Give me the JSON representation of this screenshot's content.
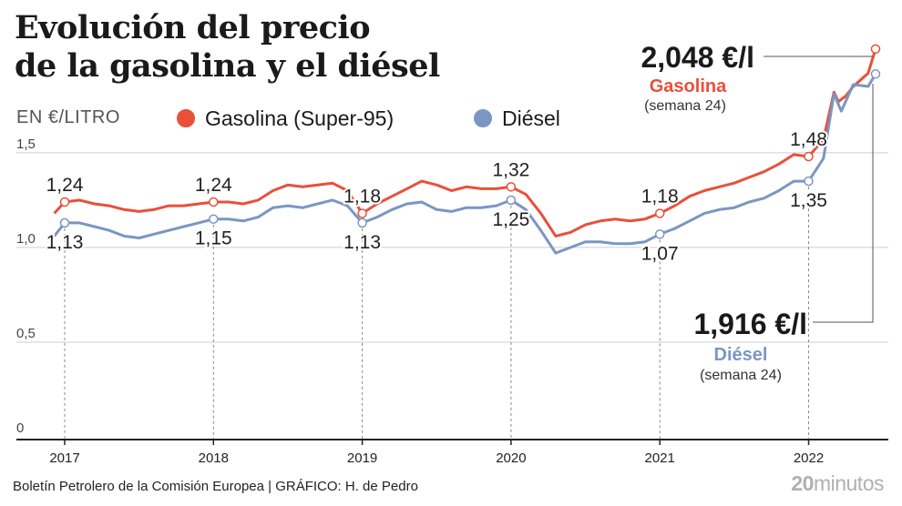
{
  "title_line1": "Evolución del precio",
  "title_line2": "de la gasolina y el diésel",
  "units": "EN €/LITRO",
  "legend": [
    {
      "label": "Gasolina (Super-95)",
      "color": "#e8503a"
    },
    {
      "label": "Diésel",
      "color": "#7b96c2"
    }
  ],
  "footer": "Boletín Petrolero de la Comisión Europea  |  GRÁFICO: H. de Pedro",
  "logo_bold": "20",
  "logo_thin": "minutos",
  "callouts": {
    "gasolina": {
      "value": "2,048 €/l",
      "name": "Gasolina",
      "week": "(semana 24)"
    },
    "diesel": {
      "value": "1,916 €/l",
      "name": "Diésel",
      "week": "(semana 24)"
    }
  },
  "chart_data": {
    "type": "line",
    "ylim": [
      0,
      2.1
    ],
    "yticks": [
      0,
      0.5,
      1.0,
      1.5
    ],
    "ytick_labels": [
      "0",
      "0,5",
      "1,0",
      "1,5"
    ],
    "xticks": [
      2017,
      2018,
      2019,
      2020,
      2021,
      2022
    ],
    "xlim": [
      2016.93,
      2022.5
    ],
    "grid": "horizontal",
    "series": [
      {
        "name": "Gasolina (Super-95)",
        "color": "#e8503a",
        "points": [
          [
            2016.93,
            1.18
          ],
          [
            2017.0,
            1.24
          ],
          [
            2017.1,
            1.25
          ],
          [
            2017.2,
            1.23
          ],
          [
            2017.3,
            1.22
          ],
          [
            2017.4,
            1.2
          ],
          [
            2017.5,
            1.19
          ],
          [
            2017.6,
            1.2
          ],
          [
            2017.7,
            1.22
          ],
          [
            2017.8,
            1.22
          ],
          [
            2017.9,
            1.23
          ],
          [
            2018.0,
            1.24
          ],
          [
            2018.1,
            1.24
          ],
          [
            2018.2,
            1.23
          ],
          [
            2018.3,
            1.25
          ],
          [
            2018.4,
            1.3
          ],
          [
            2018.5,
            1.33
          ],
          [
            2018.6,
            1.32
          ],
          [
            2018.7,
            1.33
          ],
          [
            2018.8,
            1.34
          ],
          [
            2018.9,
            1.3
          ],
          [
            2019.0,
            1.18
          ],
          [
            2019.1,
            1.23
          ],
          [
            2019.2,
            1.27
          ],
          [
            2019.3,
            1.31
          ],
          [
            2019.4,
            1.35
          ],
          [
            2019.5,
            1.33
          ],
          [
            2019.6,
            1.3
          ],
          [
            2019.7,
            1.32
          ],
          [
            2019.8,
            1.31
          ],
          [
            2019.9,
            1.31
          ],
          [
            2020.0,
            1.32
          ],
          [
            2020.1,
            1.28
          ],
          [
            2020.2,
            1.18
          ],
          [
            2020.3,
            1.06
          ],
          [
            2020.4,
            1.08
          ],
          [
            2020.5,
            1.12
          ],
          [
            2020.6,
            1.14
          ],
          [
            2020.7,
            1.15
          ],
          [
            2020.8,
            1.14
          ],
          [
            2020.9,
            1.15
          ],
          [
            2021.0,
            1.18
          ],
          [
            2021.1,
            1.22
          ],
          [
            2021.2,
            1.27
          ],
          [
            2021.3,
            1.3
          ],
          [
            2021.4,
            1.32
          ],
          [
            2021.5,
            1.34
          ],
          [
            2021.6,
            1.37
          ],
          [
            2021.7,
            1.4
          ],
          [
            2021.8,
            1.44
          ],
          [
            2021.9,
            1.49
          ],
          [
            2022.0,
            1.48
          ],
          [
            2022.1,
            1.57
          ],
          [
            2022.17,
            1.82
          ],
          [
            2022.2,
            1.77
          ],
          [
            2022.25,
            1.8
          ],
          [
            2022.3,
            1.85
          ],
          [
            2022.4,
            1.92
          ],
          [
            2022.45,
            2.048
          ]
        ]
      },
      {
        "name": "Diésel",
        "color": "#7b96c2",
        "points": [
          [
            2016.93,
            1.06
          ],
          [
            2017.0,
            1.13
          ],
          [
            2017.1,
            1.13
          ],
          [
            2017.2,
            1.11
          ],
          [
            2017.3,
            1.09
          ],
          [
            2017.4,
            1.06
          ],
          [
            2017.5,
            1.05
          ],
          [
            2017.6,
            1.07
          ],
          [
            2017.7,
            1.09
          ],
          [
            2017.8,
            1.11
          ],
          [
            2017.9,
            1.13
          ],
          [
            2018.0,
            1.15
          ],
          [
            2018.1,
            1.15
          ],
          [
            2018.2,
            1.14
          ],
          [
            2018.3,
            1.16
          ],
          [
            2018.4,
            1.21
          ],
          [
            2018.5,
            1.22
          ],
          [
            2018.6,
            1.21
          ],
          [
            2018.7,
            1.23
          ],
          [
            2018.8,
            1.25
          ],
          [
            2018.9,
            1.22
          ],
          [
            2019.0,
            1.13
          ],
          [
            2019.1,
            1.16
          ],
          [
            2019.2,
            1.2
          ],
          [
            2019.3,
            1.23
          ],
          [
            2019.4,
            1.24
          ],
          [
            2019.5,
            1.2
          ],
          [
            2019.6,
            1.19
          ],
          [
            2019.7,
            1.21
          ],
          [
            2019.8,
            1.21
          ],
          [
            2019.9,
            1.22
          ],
          [
            2020.0,
            1.25
          ],
          [
            2020.1,
            1.2
          ],
          [
            2020.2,
            1.09
          ],
          [
            2020.3,
            0.97
          ],
          [
            2020.4,
            1.0
          ],
          [
            2020.5,
            1.03
          ],
          [
            2020.6,
            1.03
          ],
          [
            2020.7,
            1.02
          ],
          [
            2020.8,
            1.02
          ],
          [
            2020.9,
            1.03
          ],
          [
            2021.0,
            1.07
          ],
          [
            2021.1,
            1.1
          ],
          [
            2021.2,
            1.14
          ],
          [
            2021.3,
            1.18
          ],
          [
            2021.4,
            1.2
          ],
          [
            2021.5,
            1.21
          ],
          [
            2021.6,
            1.24
          ],
          [
            2021.7,
            1.26
          ],
          [
            2021.8,
            1.3
          ],
          [
            2021.9,
            1.35
          ],
          [
            2022.0,
            1.35
          ],
          [
            2022.1,
            1.47
          ],
          [
            2022.17,
            1.81
          ],
          [
            2022.22,
            1.72
          ],
          [
            2022.3,
            1.86
          ],
          [
            2022.4,
            1.85
          ],
          [
            2022.45,
            1.916
          ]
        ]
      }
    ],
    "annotations": [
      {
        "series": 0,
        "x": 2017.0,
        "y": 1.24,
        "text": "1,24",
        "pos": "above"
      },
      {
        "series": 1,
        "x": 2017.0,
        "y": 1.13,
        "text": "1,13",
        "pos": "below"
      },
      {
        "series": 0,
        "x": 2018.0,
        "y": 1.24,
        "text": "1,24",
        "pos": "above"
      },
      {
        "series": 1,
        "x": 2018.0,
        "y": 1.15,
        "text": "1,15",
        "pos": "below"
      },
      {
        "series": 0,
        "x": 2019.0,
        "y": 1.18,
        "text": "1,18",
        "pos": "above"
      },
      {
        "series": 1,
        "x": 2019.0,
        "y": 1.13,
        "text": "1,13",
        "pos": "below"
      },
      {
        "series": 0,
        "x": 2020.0,
        "y": 1.32,
        "text": "1,32",
        "pos": "above"
      },
      {
        "series": 1,
        "x": 2020.0,
        "y": 1.25,
        "text": "1,25",
        "pos": "below"
      },
      {
        "series": 0,
        "x": 2021.0,
        "y": 1.18,
        "text": "1,18",
        "pos": "above"
      },
      {
        "series": 1,
        "x": 2021.0,
        "y": 1.07,
        "text": "1,07",
        "pos": "below"
      },
      {
        "series": 0,
        "x": 2022.0,
        "y": 1.48,
        "text": "1,48",
        "pos": "above"
      },
      {
        "series": 1,
        "x": 2022.0,
        "y": 1.35,
        "text": "1,35",
        "pos": "below"
      }
    ]
  }
}
